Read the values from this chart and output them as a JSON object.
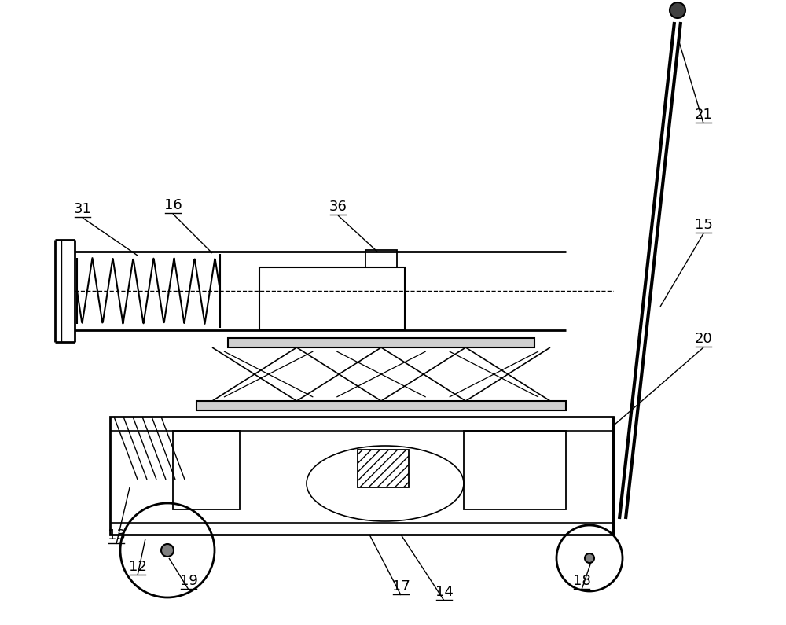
{
  "bg_color": "#ffffff",
  "line_color": "#000000",
  "fig_width": 10.0,
  "fig_height": 7.95,
  "dpi": 100
}
